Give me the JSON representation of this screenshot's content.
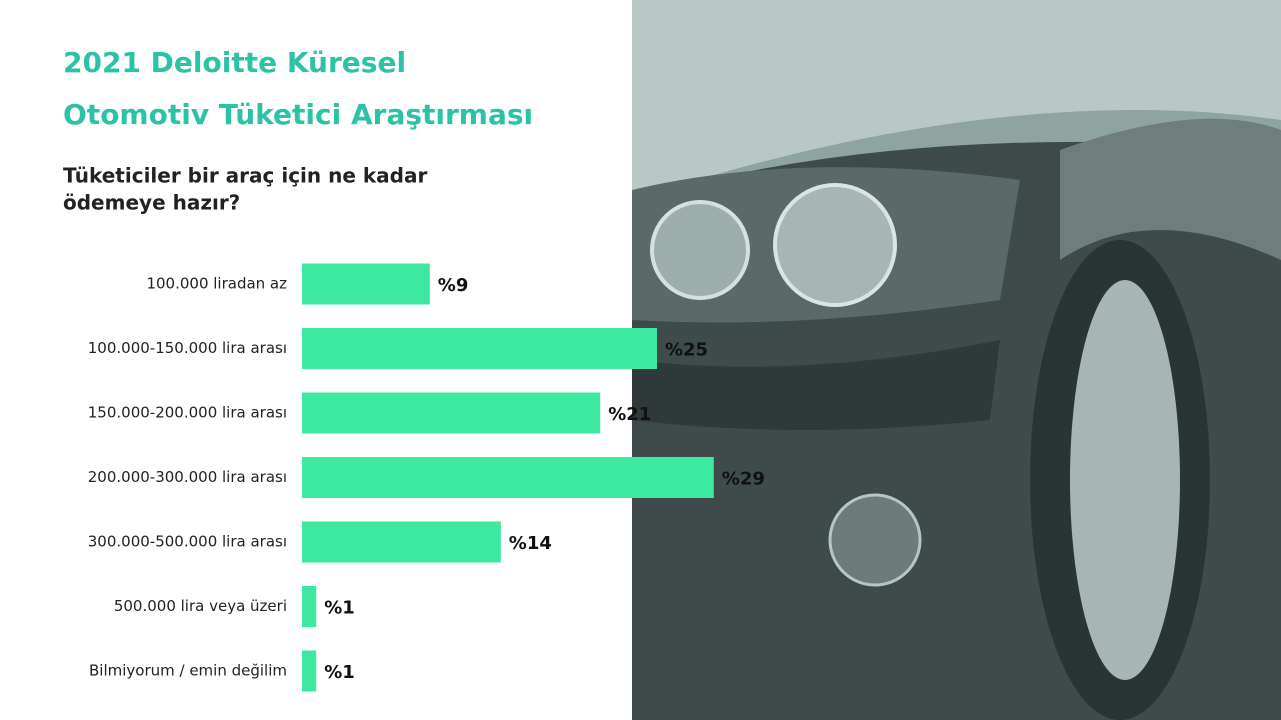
{
  "chart_data": {
    "type": "bar",
    "orientation": "horizontal",
    "title": [
      "2021 Deloitte Küresel",
      "Otomotiv Tüketici Araştırması"
    ],
    "subtitle": [
      "Tüketiciler bir araç için ne kadar",
      "ödemeye hazır?"
    ],
    "categories": [
      "100.000 liradan az",
      "100.000-150.000 lira arası",
      "150.000-200.000 lira arası",
      "200.000-300.000 lira arası",
      "300.000-500.000 lira arası",
      "500.000 lira veya üzeri",
      "Bilmiyorum / emin değilim"
    ],
    "values": [
      9,
      25,
      21,
      29,
      14,
      1,
      1
    ],
    "value_labels": [
      "%9",
      "%25",
      "%21",
      "%29",
      "%14",
      "%1",
      "%1"
    ],
    "color": "#3de8a0"
  }
}
